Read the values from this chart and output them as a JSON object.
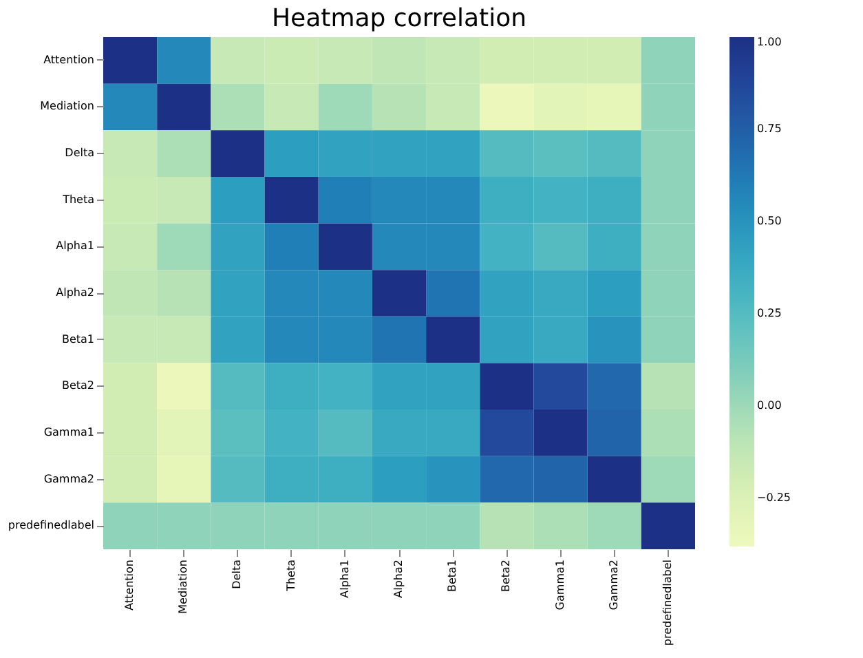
{
  "chart_data": {
    "type": "heatmap",
    "title": "Heatmap correlation",
    "categories": [
      "Attention",
      "Mediation",
      "Delta",
      "Theta",
      "Alpha1",
      "Alpha2",
      "Beta1",
      "Beta2",
      "Gamma1",
      "Gamma2",
      "predefinedlabel"
    ],
    "y_categories": [
      "Attention",
      "Mediation",
      "Delta",
      "Theta",
      "Alpha1",
      "Alpha2",
      "Beta1",
      "Beta2",
      "Gamma1",
      "Gamma2",
      "predefinedlabel"
    ],
    "cells": [
      [
        1.0,
        0.55,
        -0.15,
        -0.17,
        -0.15,
        -0.12,
        -0.15,
        -0.2,
        -0.2,
        -0.2,
        0.05
      ],
      [
        0.55,
        1.0,
        -0.05,
        -0.15,
        0.0,
        -0.08,
        -0.15,
        -0.35,
        -0.3,
        -0.32,
        0.05
      ],
      [
        -0.15,
        -0.05,
        1.0,
        0.45,
        0.42,
        0.42,
        0.42,
        0.25,
        0.22,
        0.25,
        0.05
      ],
      [
        -0.17,
        -0.15,
        0.45,
        1.0,
        0.6,
        0.55,
        0.55,
        0.35,
        0.32,
        0.35,
        0.05
      ],
      [
        -0.15,
        0.0,
        0.42,
        0.6,
        1.0,
        0.55,
        0.55,
        0.32,
        0.25,
        0.35,
        0.05
      ],
      [
        -0.12,
        -0.08,
        0.42,
        0.55,
        0.55,
        1.0,
        0.65,
        0.42,
        0.38,
        0.45,
        0.05
      ],
      [
        -0.15,
        -0.15,
        0.42,
        0.55,
        0.55,
        0.65,
        1.0,
        0.42,
        0.38,
        0.5,
        0.05
      ],
      [
        -0.2,
        -0.35,
        0.25,
        0.35,
        0.32,
        0.42,
        0.42,
        1.0,
        0.85,
        0.7,
        -0.08
      ],
      [
        -0.2,
        -0.3,
        0.22,
        0.32,
        0.25,
        0.38,
        0.38,
        0.85,
        1.0,
        0.72,
        -0.05
      ],
      [
        -0.2,
        -0.32,
        0.25,
        0.35,
        0.35,
        0.45,
        0.5,
        0.7,
        0.72,
        1.0,
        0.0
      ],
      [
        0.05,
        0.05,
        0.05,
        0.05,
        0.05,
        0.05,
        0.05,
        -0.08,
        -0.05,
        0.0,
        1.0
      ]
    ],
    "clim": [
      -0.38,
      1.0
    ],
    "cticks": [
      {
        "value": -0.25,
        "label": "−0.25"
      },
      {
        "value": 0,
        "label": "0.00"
      },
      {
        "value": 0.25,
        "label": "0.25"
      },
      {
        "value": 0.5,
        "label": "0.50"
      },
      {
        "value": 0.75,
        "label": "0.75"
      },
      {
        "value": 1,
        "label": "1.00"
      }
    ],
    "grid": false
  }
}
